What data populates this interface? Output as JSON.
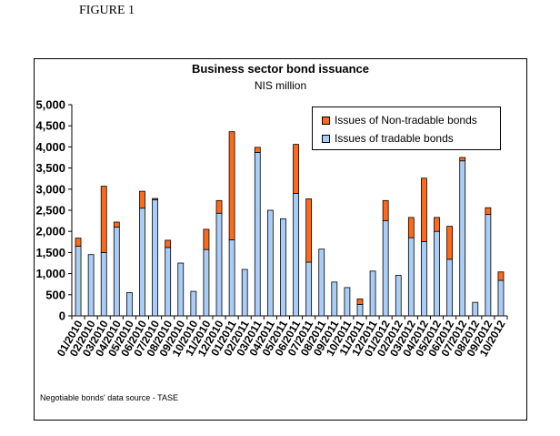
{
  "figure_label": "FIGURE 1",
  "source_note": "Negotiable bonds' data source - TASE",
  "colors": {
    "tradable": "#a9cdf6",
    "non_tradable": "#ff6a1a",
    "outline": "#000000"
  },
  "chart_data": {
    "type": "bar",
    "stacked": true,
    "title": "Business sector bond issuance",
    "subtitle": "NIS million",
    "xlabel": "",
    "ylabel": "",
    "ylim": [
      0,
      5000
    ],
    "y_ticks": [
      "0",
      "500",
      "1,000",
      "1,500",
      "2,000",
      "2,500",
      "3,000",
      "3,500",
      "4,000",
      "4,500",
      "5,000"
    ],
    "grid": false,
    "legend_position": "top-right",
    "categories": [
      "01/2010",
      "02/2010",
      "03/2010",
      "04/2010",
      "05/2010",
      "06/2010",
      "07/2010",
      "08/2010",
      "09/2010",
      "10/2010",
      "11/2010",
      "12/2010",
      "01/2011",
      "02/2011",
      "03/2011",
      "04/2011",
      "05/2011",
      "06/2011",
      "07/2011",
      "08/2011",
      "09/2011",
      "10/2011",
      "11/2011",
      "12/2011",
      "01/2012",
      "02/2012",
      "03/2012",
      "04/2012",
      "05/2012",
      "06/2012",
      "07/2012",
      "08/2012",
      "09/2012",
      "10/2012"
    ],
    "x_labels": [
      "01/2010",
      "02/2010",
      "03/2010",
      "04/2010",
      "05/2010",
      "06/2010",
      "07/2010",
      "08/2010",
      "09/2010",
      "10/2010",
      "11/2010",
      "12/2010",
      "01/2011",
      "02/2011",
      "03/2011",
      "04/2011",
      "05/2011",
      "06/2011",
      "07/2011",
      "08/2011",
      "09/2011",
      "10/2011",
      "11/2011",
      "12/2011",
      "01/2012",
      "02/2012",
      "03/2012",
      "04/2012",
      "05/2012",
      "06/2012",
      "07/2012",
      "08/2012",
      "09/2012",
      "10/2012"
    ],
    "series": [
      {
        "name": "Issues of tradable bonds",
        "values": [
          1650,
          1450,
          1500,
          2100,
          550,
          2550,
          2750,
          1620,
          1250,
          580,
          1570,
          2430,
          1800,
          1100,
          3870,
          2500,
          2300,
          2900,
          1270,
          1580,
          800,
          670,
          270,
          1060,
          2250,
          960,
          1850,
          1760,
          2000,
          1340,
          3670,
          320,
          2400,
          840
        ]
      },
      {
        "name": "Issues of Non-tradable bonds",
        "values": [
          190,
          0,
          1570,
          120,
          0,
          400,
          30,
          170,
          0,
          0,
          480,
          300,
          2560,
          0,
          120,
          0,
          0,
          1160,
          1500,
          0,
          0,
          0,
          130,
          0,
          480,
          0,
          480,
          1500,
          330,
          780,
          80,
          0,
          160,
          200
        ]
      }
    ]
  }
}
